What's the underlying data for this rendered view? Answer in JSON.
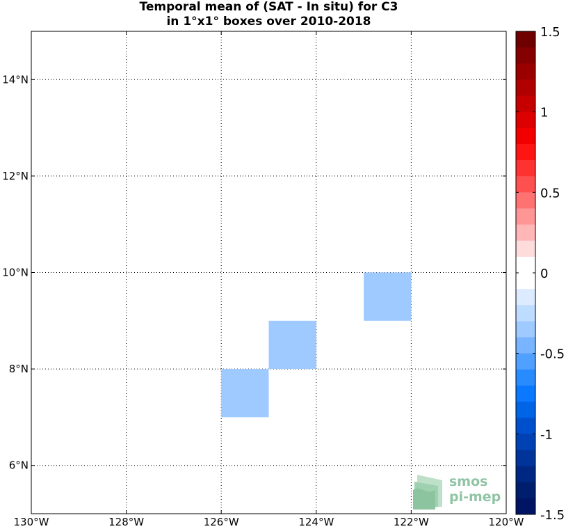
{
  "chart_data": {
    "type": "heatmap",
    "title_lines": [
      "Temporal mean of (SAT - In situ) for C3",
      "in 1°x1° boxes over 2010-2018"
    ],
    "xlabel": "",
    "ylabel": "",
    "xlim": [
      -130,
      -120
    ],
    "ylim": [
      5,
      15
    ],
    "x_ticks": [
      {
        "value": -130,
        "label": "130°W"
      },
      {
        "value": -128,
        "label": "128°W"
      },
      {
        "value": -126,
        "label": "126°W"
      },
      {
        "value": -124,
        "label": "124°W"
      },
      {
        "value": -122,
        "label": "122°W"
      },
      {
        "value": -120,
        "label": "120°W"
      }
    ],
    "y_ticks": [
      {
        "value": 6,
        "label": "6°N"
      },
      {
        "value": 8,
        "label": "8°N"
      },
      {
        "value": 10,
        "label": "10°N"
      },
      {
        "value": 12,
        "label": "12°N"
      },
      {
        "value": 14,
        "label": "14°N"
      }
    ],
    "grid": true,
    "cells": [
      {
        "lon_min": -126,
        "lon_max": -125,
        "lat_min": 7,
        "lat_max": 8,
        "value": -0.35
      },
      {
        "lon_min": -125,
        "lon_max": -124,
        "lat_min": 8,
        "lat_max": 9,
        "value": -0.35
      },
      {
        "lon_min": -123,
        "lon_max": -122,
        "lat_min": 9,
        "lat_max": 10,
        "value": -0.35
      }
    ],
    "colorbar": {
      "min": -1.5,
      "max": 1.5,
      "ticks": [
        {
          "value": 1.5,
          "label": "1.5"
        },
        {
          "value": 1,
          "label": "1"
        },
        {
          "value": 0.5,
          "label": "0.5"
        },
        {
          "value": 0,
          "label": "0"
        },
        {
          "value": -0.5,
          "label": "-0.5"
        },
        {
          "value": -1,
          "label": "-1"
        },
        {
          "value": -1.5,
          "label": "-1.5"
        }
      ],
      "colors_top_to_bottom": [
        "#6e0000",
        "#850000",
        "#9b0000",
        "#b00000",
        "#c60000",
        "#dc0000",
        "#f20000",
        "#ff1414",
        "#ff3232",
        "#ff5050",
        "#ff7272",
        "#ff9696",
        "#ffb6b6",
        "#ffdcdc",
        "#ffffff",
        "#ffffff",
        "#dcebff",
        "#bedcff",
        "#9fcaff",
        "#78b4ff",
        "#50a0ff",
        "#288cff",
        "#0a78ff",
        "#0064e6",
        "#0050cd",
        "#0041b4",
        "#00349b",
        "#002882",
        "#001e6e",
        "#001464"
      ]
    },
    "legend": "right"
  },
  "logo": {
    "line1": "smos",
    "line2": "pi-mep"
  }
}
